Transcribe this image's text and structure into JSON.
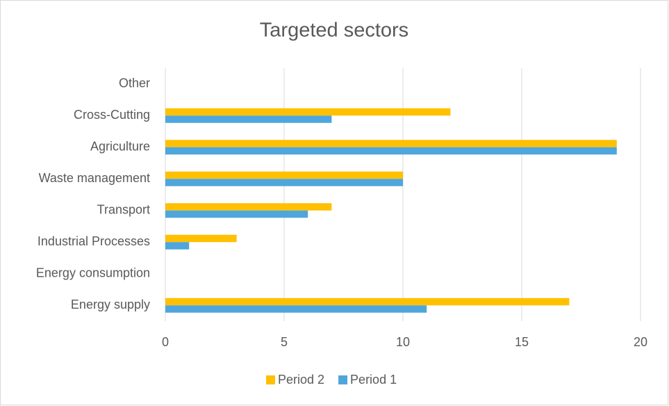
{
  "chart_data": {
    "type": "hbar",
    "title": "Targeted sectors",
    "categories": [
      "Energy supply",
      "Energy consumption",
      "Industrial Processes",
      "Transport",
      "Waste management",
      "Agriculture",
      "Cross-Cutting",
      "Other"
    ],
    "series": [
      {
        "name": "Period 2",
        "color": "#ffc000",
        "values": [
          17,
          0,
          3,
          7,
          10,
          19,
          12,
          0
        ]
      },
      {
        "name": "Period 1",
        "color": "#4ea6dc",
        "values": [
          11,
          0,
          1,
          6,
          10,
          19,
          7,
          0
        ]
      }
    ],
    "xlim": [
      0,
      20
    ],
    "xticks": [
      0,
      5,
      10,
      15,
      20
    ],
    "grid": true,
    "legend": "bottom"
  }
}
